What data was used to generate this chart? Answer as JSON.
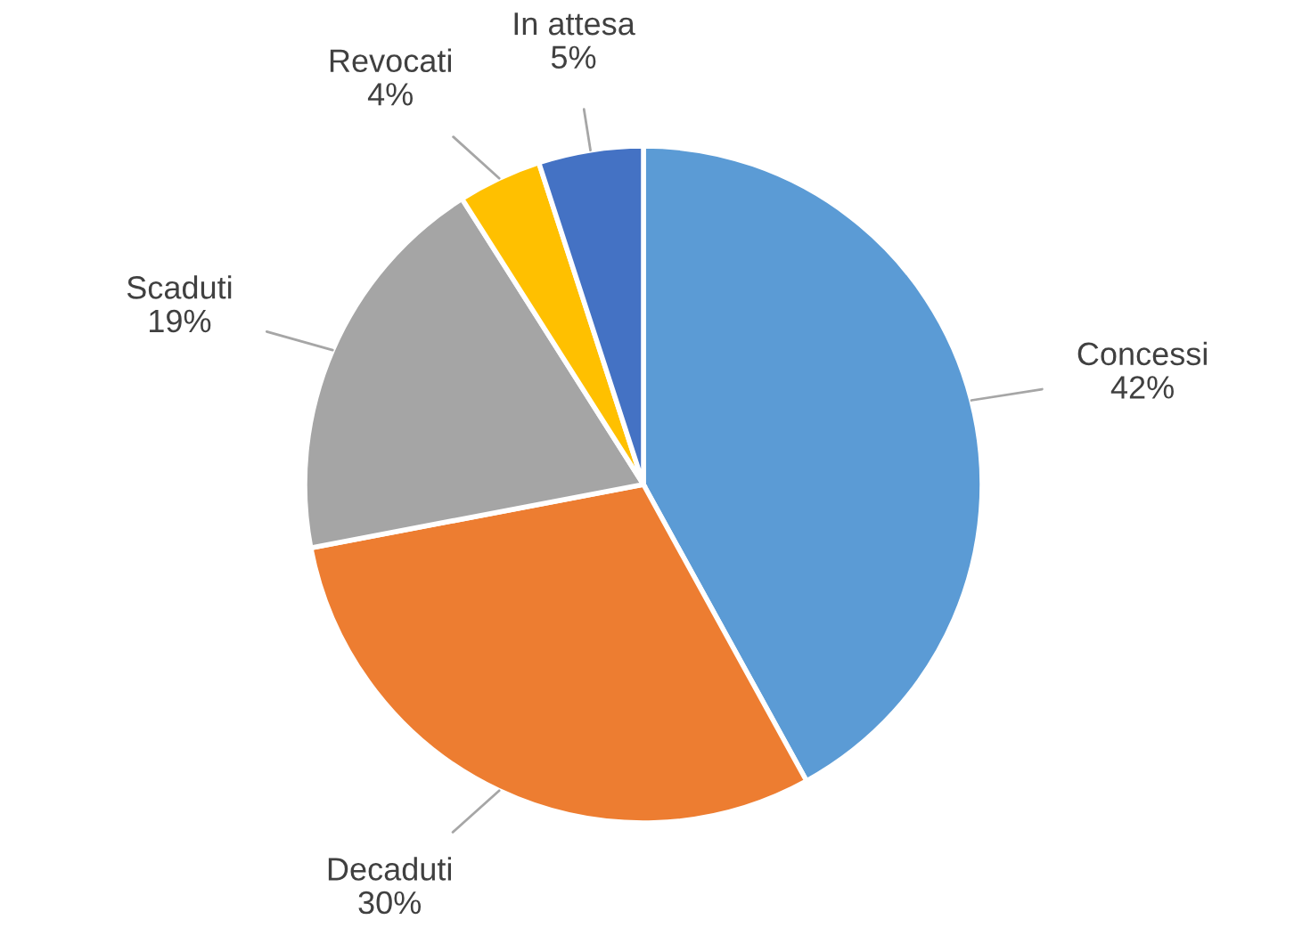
{
  "chart_data": {
    "type": "pie",
    "categories": [
      "Concessi",
      "Decaduti",
      "Scaduti",
      "Revocati",
      "In attesa"
    ],
    "values": [
      42,
      30,
      19,
      4,
      5
    ],
    "value_labels": [
      "42%",
      "30%",
      "19%",
      "4%",
      "5%"
    ],
    "colors": [
      "#5b9bd5",
      "#ed7d31",
      "#a5a5a5",
      "#ffc000",
      "#4472c4"
    ],
    "legend": false
  }
}
